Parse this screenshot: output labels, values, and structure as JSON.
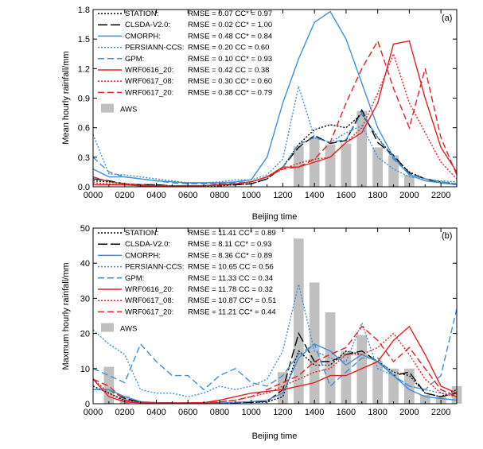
{
  "chart_data": [
    {
      "type": "line",
      "panel_label": "(a)",
      "xlabel": "Beijing time",
      "ylabel": "Mean hourly rainfall/mm",
      "xlim": [
        0,
        23
      ],
      "ylim": [
        0,
        1.8
      ],
      "x_tick_labels": [
        "0000",
        "0200",
        "0400",
        "0600",
        "0800",
        "1000",
        "1200",
        "1400",
        "1600",
        "1800",
        "2000",
        "2200"
      ],
      "y_tick_labels": [
        "0.0",
        "0.3",
        "0.6",
        "0.9",
        "1.2",
        "1.5",
        "1.8"
      ],
      "bars": {
        "name": "AWS",
        "color": "#c0c0c0",
        "x": [
          13,
          14,
          15,
          16,
          17,
          18,
          19,
          20
        ],
        "values": [
          0.41,
          0.5,
          0.43,
          0.44,
          0.77,
          0.4,
          0.32,
          0.12
        ]
      },
      "series": [
        {
          "name": "STATION",
          "stats": "RMSE = 0.07  CC* = 0.97",
          "color": "#000000",
          "dash": "dot",
          "x": [
            0,
            1,
            2,
            3,
            4,
            5,
            6,
            7,
            8,
            9,
            10,
            11,
            12,
            13,
            14,
            15,
            16,
            17,
            18,
            19,
            20,
            21,
            22,
            23
          ],
          "values": [
            0.06,
            0.05,
            0.03,
            0.02,
            0.02,
            0.01,
            0.01,
            0.01,
            0.01,
            0.02,
            0.03,
            0.08,
            0.2,
            0.43,
            0.58,
            0.63,
            0.6,
            0.74,
            0.5,
            0.3,
            0.15,
            0.08,
            0.05,
            0.03
          ]
        },
        {
          "name": "CLSDA-V2.0",
          "stats": "RMSE = 0.02  CC* = 1.00",
          "color": "#000000",
          "dash": "longdash",
          "x": [
            0,
            1,
            2,
            3,
            4,
            5,
            6,
            7,
            8,
            9,
            10,
            11,
            12,
            13,
            14,
            15,
            16,
            17,
            18,
            19,
            20,
            21,
            22,
            23
          ],
          "values": [
            0.08,
            0.06,
            0.03,
            0.02,
            0.02,
            0.01,
            0.01,
            0.01,
            0.02,
            0.02,
            0.03,
            0.08,
            0.2,
            0.4,
            0.52,
            0.44,
            0.47,
            0.78,
            0.45,
            0.32,
            0.14,
            0.08,
            0.04,
            0.02
          ]
        },
        {
          "name": "CMORPH",
          "stats": "RMSE = 0.48  CC* = 0.84",
          "color": "#3c8fde",
          "dash": "solid",
          "x": [
            0,
            1,
            2,
            3,
            4,
            5,
            6,
            7,
            8,
            9,
            10,
            11,
            12,
            13,
            14,
            15,
            16,
            17,
            18,
            19,
            20,
            21,
            22,
            23
          ],
          "values": [
            0.18,
            0.1,
            0.1,
            0.08,
            0.06,
            0.05,
            0.04,
            0.04,
            0.04,
            0.05,
            0.07,
            0.3,
            0.85,
            1.3,
            1.67,
            1.78,
            1.5,
            1.05,
            0.6,
            0.3,
            0.12,
            0.06,
            0.04,
            0.02
          ]
        },
        {
          "name": "PERSIANN-CCS",
          "stats": "RMSE = 0.20  CC = 0.60",
          "color": "#3c8fde",
          "dash": "dot",
          "x": [
            0,
            1,
            2,
            3,
            4,
            5,
            6,
            7,
            8,
            9,
            10,
            11,
            12,
            13,
            14,
            15,
            16,
            17,
            18,
            19,
            20,
            21,
            22,
            23
          ],
          "values": [
            0.53,
            0.13,
            0.12,
            0.1,
            0.08,
            0.06,
            0.04,
            0.04,
            0.05,
            0.07,
            0.07,
            0.12,
            0.28,
            1.02,
            0.5,
            0.45,
            0.55,
            0.62,
            0.3,
            0.18,
            0.1,
            0.08,
            0.06,
            0.05
          ]
        },
        {
          "name": "GPM",
          "stats": "RMSE = 0.10  CC* = 0.93",
          "color": "#3c8fde",
          "dash": "dash",
          "x": [
            0,
            1,
            2,
            3,
            4,
            5,
            6,
            7,
            8,
            9,
            10,
            11,
            12,
            13,
            14,
            15,
            16,
            17,
            18,
            19,
            20,
            21,
            22,
            23
          ],
          "values": [
            0.3,
            0.15,
            0.1,
            0.08,
            0.06,
            0.04,
            0.03,
            0.03,
            0.03,
            0.04,
            0.05,
            0.1,
            0.2,
            0.43,
            0.5,
            0.45,
            0.48,
            0.75,
            0.5,
            0.28,
            0.13,
            0.08,
            0.05,
            0.03
          ]
        },
        {
          "name": "WRF0616_20",
          "stats": "RMSE = 0.42  CC = 0.38",
          "color": "#e62020",
          "dash": "solid",
          "x": [
            0,
            1,
            2,
            3,
            4,
            5,
            6,
            7,
            8,
            9,
            10,
            11,
            12,
            13,
            14,
            15,
            16,
            17,
            18,
            19,
            20,
            21,
            22,
            23
          ],
          "values": [
            0.02,
            0.02,
            0.02,
            0.01,
            0.01,
            0.01,
            0.01,
            0.01,
            0.02,
            0.03,
            0.05,
            0.1,
            0.2,
            0.2,
            0.25,
            0.3,
            0.45,
            0.55,
            0.85,
            1.45,
            1.48,
            0.9,
            0.4,
            0.15
          ]
        },
        {
          "name": "WRF0617_08",
          "stats": "RMSE = 0.30  CC* = 0.60",
          "color": "#e62020",
          "dash": "dot",
          "x": [
            0,
            1,
            2,
            3,
            4,
            5,
            6,
            7,
            8,
            9,
            10,
            11,
            12,
            13,
            14,
            15,
            16,
            17,
            18,
            19,
            20,
            21,
            22,
            23
          ],
          "values": [
            0.04,
            0.03,
            0.02,
            0.01,
            0.01,
            0.01,
            0.01,
            0.01,
            0.02,
            0.03,
            0.05,
            0.1,
            0.18,
            0.24,
            0.28,
            0.3,
            0.45,
            0.6,
            0.95,
            1.35,
            0.85,
            0.55,
            0.25,
            0.08
          ]
        },
        {
          "name": "WRF0617_20",
          "stats": "RMSE = 0.38  CC* = 0.79",
          "color": "#e62020",
          "dash": "dash",
          "x": [
            0,
            1,
            2,
            3,
            4,
            5,
            6,
            7,
            8,
            9,
            10,
            11,
            12,
            13,
            14,
            15,
            16,
            17,
            18,
            19,
            20,
            21,
            22,
            23
          ],
          "values": [
            0.1,
            0.05,
            0.03,
            0.02,
            0.01,
            0.01,
            0.01,
            0.01,
            0.02,
            0.03,
            0.05,
            0.1,
            0.18,
            0.2,
            0.28,
            0.45,
            0.85,
            1.2,
            1.48,
            1.0,
            0.6,
            1.2,
            0.5,
            0.12
          ]
        }
      ]
    },
    {
      "type": "line",
      "panel_label": "(b)",
      "xlabel": "Beijing time",
      "ylabel": "Maxmum hourly rainfall/mm",
      "xlim": [
        0,
        23
      ],
      "ylim": [
        0,
        50
      ],
      "x_tick_labels": [
        "0000",
        "0200",
        "0400",
        "0600",
        "0800",
        "1000",
        "1200",
        "1400",
        "1600",
        "1800",
        "2000",
        "2200"
      ],
      "y_tick_labels": [
        "0",
        "10",
        "20",
        "30",
        "40",
        "50"
      ],
      "bars": {
        "name": "AWS",
        "color": "#c0c0c0",
        "x": [
          1,
          2,
          12,
          13,
          14,
          15,
          16,
          17,
          18,
          19,
          20,
          21,
          22,
          23
        ],
        "values": [
          10.5,
          2.2,
          9,
          47,
          34.5,
          26,
          15,
          19.5,
          12,
          10,
          10,
          2.5,
          2,
          5
        ]
      },
      "series": [
        {
          "name": "STATION",
          "stats": "RMSE = 11.41  CC* = 0.89",
          "color": "#000000",
          "dash": "dot",
          "x": [
            0,
            1,
            2,
            3,
            4,
            5,
            6,
            7,
            8,
            9,
            10,
            11,
            12,
            13,
            14,
            15,
            16,
            17,
            18,
            19,
            20,
            21,
            22,
            23
          ],
          "values": [
            5,
            3,
            1,
            0.5,
            0.3,
            0.2,
            0.2,
            0.2,
            0.2,
            0.3,
            0.4,
            0.5,
            2,
            15,
            11,
            11,
            15,
            14,
            12,
            9,
            8,
            3,
            2,
            4
          ]
        },
        {
          "name": "CLSDA-V2.0",
          "stats": "RMSE = 8.11  CC* = 0.93",
          "color": "#000000",
          "dash": "longdash",
          "x": [
            0,
            1,
            2,
            3,
            4,
            5,
            6,
            7,
            8,
            9,
            10,
            11,
            12,
            13,
            14,
            15,
            16,
            17,
            18,
            19,
            20,
            21,
            22,
            23
          ],
          "values": [
            4,
            4,
            1.5,
            0.5,
            0.3,
            0.2,
            0.2,
            0.2,
            0.2,
            0.3,
            0.4,
            0.6,
            4,
            20,
            12,
            12,
            14,
            15,
            12,
            8,
            9,
            3,
            2,
            3
          ]
        },
        {
          "name": "CMORPH",
          "stats": "RMSE = 8.36  CC* = 0.89",
          "color": "#3c8fde",
          "dash": "solid",
          "x": [
            0,
            1,
            2,
            3,
            4,
            5,
            6,
            7,
            8,
            9,
            10,
            11,
            12,
            13,
            14,
            15,
            16,
            17,
            18,
            19,
            20,
            21,
            22,
            23
          ],
          "values": [
            4,
            4,
            2,
            0.6,
            0.3,
            0.2,
            0.2,
            0.2,
            0.2,
            0.4,
            0.6,
            1,
            3,
            13,
            17,
            15,
            11,
            14,
            12,
            8,
            4,
            2,
            1.5,
            1
          ]
        },
        {
          "name": "PERSIANN-CCS",
          "stats": "RMSE = 10.65  CC = 0.56",
          "color": "#3c8fde",
          "dash": "dot",
          "x": [
            0,
            1,
            2,
            3,
            4,
            5,
            6,
            7,
            8,
            9,
            10,
            11,
            12,
            13,
            14,
            15,
            16,
            17,
            18,
            19,
            20,
            21,
            22,
            23
          ],
          "values": [
            21,
            17,
            14,
            4,
            3,
            3,
            2,
            3,
            5,
            4,
            5,
            7,
            15,
            34,
            15,
            13,
            12,
            23,
            10,
            8,
            5,
            4,
            3,
            2
          ]
        },
        {
          "name": "GPM",
          "stats": "RMSE = 11.33  CC = 0.34",
          "color": "#3c8fde",
          "dash": "dash",
          "x": [
            0,
            1,
            2,
            3,
            4,
            5,
            6,
            7,
            8,
            9,
            10,
            11,
            12,
            13,
            14,
            15,
            16,
            17,
            18,
            19,
            20,
            21,
            22,
            23
          ],
          "values": [
            10,
            8,
            6,
            17,
            12,
            8,
            8,
            4,
            8,
            10,
            6,
            5,
            8,
            14,
            17,
            5,
            9,
            13,
            13,
            8,
            5,
            4,
            8,
            27
          ]
        },
        {
          "name": "WRF0616_20",
          "stats": "RMSE = 11.78  CC = 0.32",
          "color": "#e62020",
          "dash": "solid",
          "x": [
            0,
            1,
            2,
            3,
            4,
            5,
            6,
            7,
            8,
            9,
            10,
            11,
            12,
            13,
            14,
            15,
            16,
            17,
            18,
            19,
            20,
            21,
            22,
            23
          ],
          "values": [
            7,
            2,
            0.5,
            0.3,
            0.2,
            0.2,
            0.2,
            0.3,
            1,
            2,
            3,
            3.5,
            4,
            5,
            6,
            8,
            8,
            10,
            12,
            18,
            22,
            14,
            5,
            3
          ]
        },
        {
          "name": "WRF0617_08",
          "stats": "RMSE = 10.87  CC* = 0.51",
          "color": "#e62020",
          "dash": "dot",
          "x": [
            0,
            1,
            2,
            3,
            4,
            5,
            6,
            7,
            8,
            9,
            10,
            11,
            12,
            13,
            14,
            15,
            16,
            17,
            18,
            19,
            20,
            21,
            22,
            23
          ],
          "values": [
            7,
            3,
            0.5,
            0.3,
            0.2,
            0.2,
            0.2,
            0.3,
            0.5,
            1,
            2,
            3,
            5,
            7,
            9,
            10,
            14,
            14,
            16,
            20,
            14,
            7,
            3,
            2
          ]
        },
        {
          "name": "WRF0617_20",
          "stats": "RMSE = 11.21  CC* = 0.44",
          "color": "#e62020",
          "dash": "dash",
          "x": [
            0,
            1,
            2,
            3,
            4,
            5,
            6,
            7,
            8,
            9,
            10,
            11,
            12,
            13,
            14,
            15,
            16,
            17,
            18,
            19,
            20,
            21,
            22,
            23
          ],
          "values": [
            7,
            5,
            1,
            0.3,
            0.2,
            0.2,
            0.2,
            0.3,
            0.5,
            1,
            2,
            4,
            6,
            8,
            12,
            14,
            16,
            22,
            18,
            12,
            16,
            10,
            4,
            2
          ]
        }
      ]
    }
  ]
}
